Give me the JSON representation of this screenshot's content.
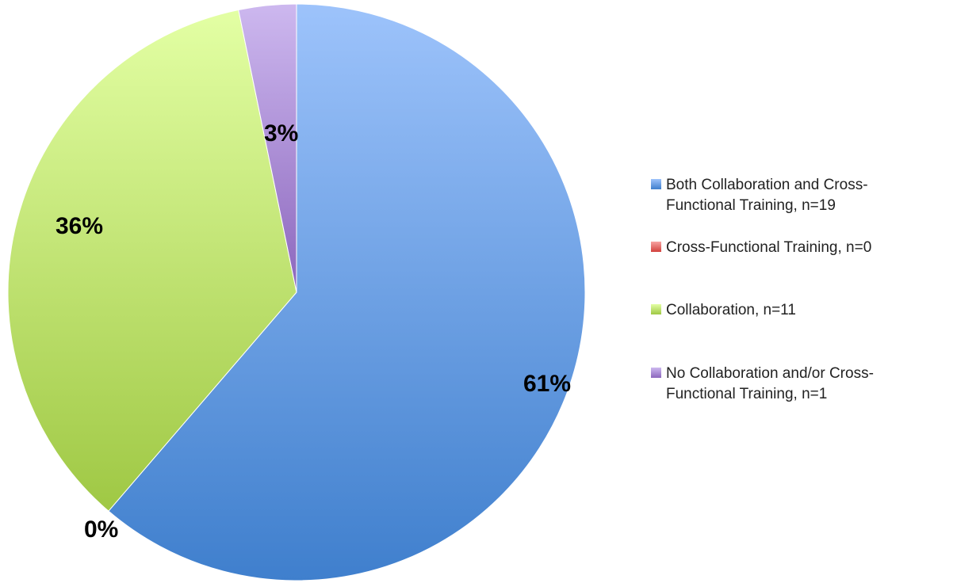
{
  "chart_data": {
    "type": "pie",
    "title": "",
    "legend_position": "right",
    "slices": [
      {
        "name": "Both Collaboration and Cross-Functional Training, n=19",
        "legend_lines": [
          "Both Collaboration and Cross-",
          "Functional Training, n=19"
        ],
        "value": 19,
        "percent_label": "61%",
        "color": "#5b8fdb"
      },
      {
        "name": "Cross-Functional Training, n=0",
        "legend_lines": [
          "Cross-Functional Training, n=0"
        ],
        "value": 0,
        "percent_label": "0%",
        "color": "#e05b58"
      },
      {
        "name": "Collaboration, n=11",
        "legend_lines": [
          "Collaboration, n=11"
        ],
        "value": 11,
        "percent_label": "36%",
        "color": "#b5dd6e"
      },
      {
        "name": "No Collaboration and/or Cross-Functional Training, n=1",
        "legend_lines": [
          "No Collaboration and/or Cross-",
          "Functional Training, n=1"
        ],
        "value": 1,
        "percent_label": "3%",
        "color": "#a98bd1"
      }
    ]
  }
}
